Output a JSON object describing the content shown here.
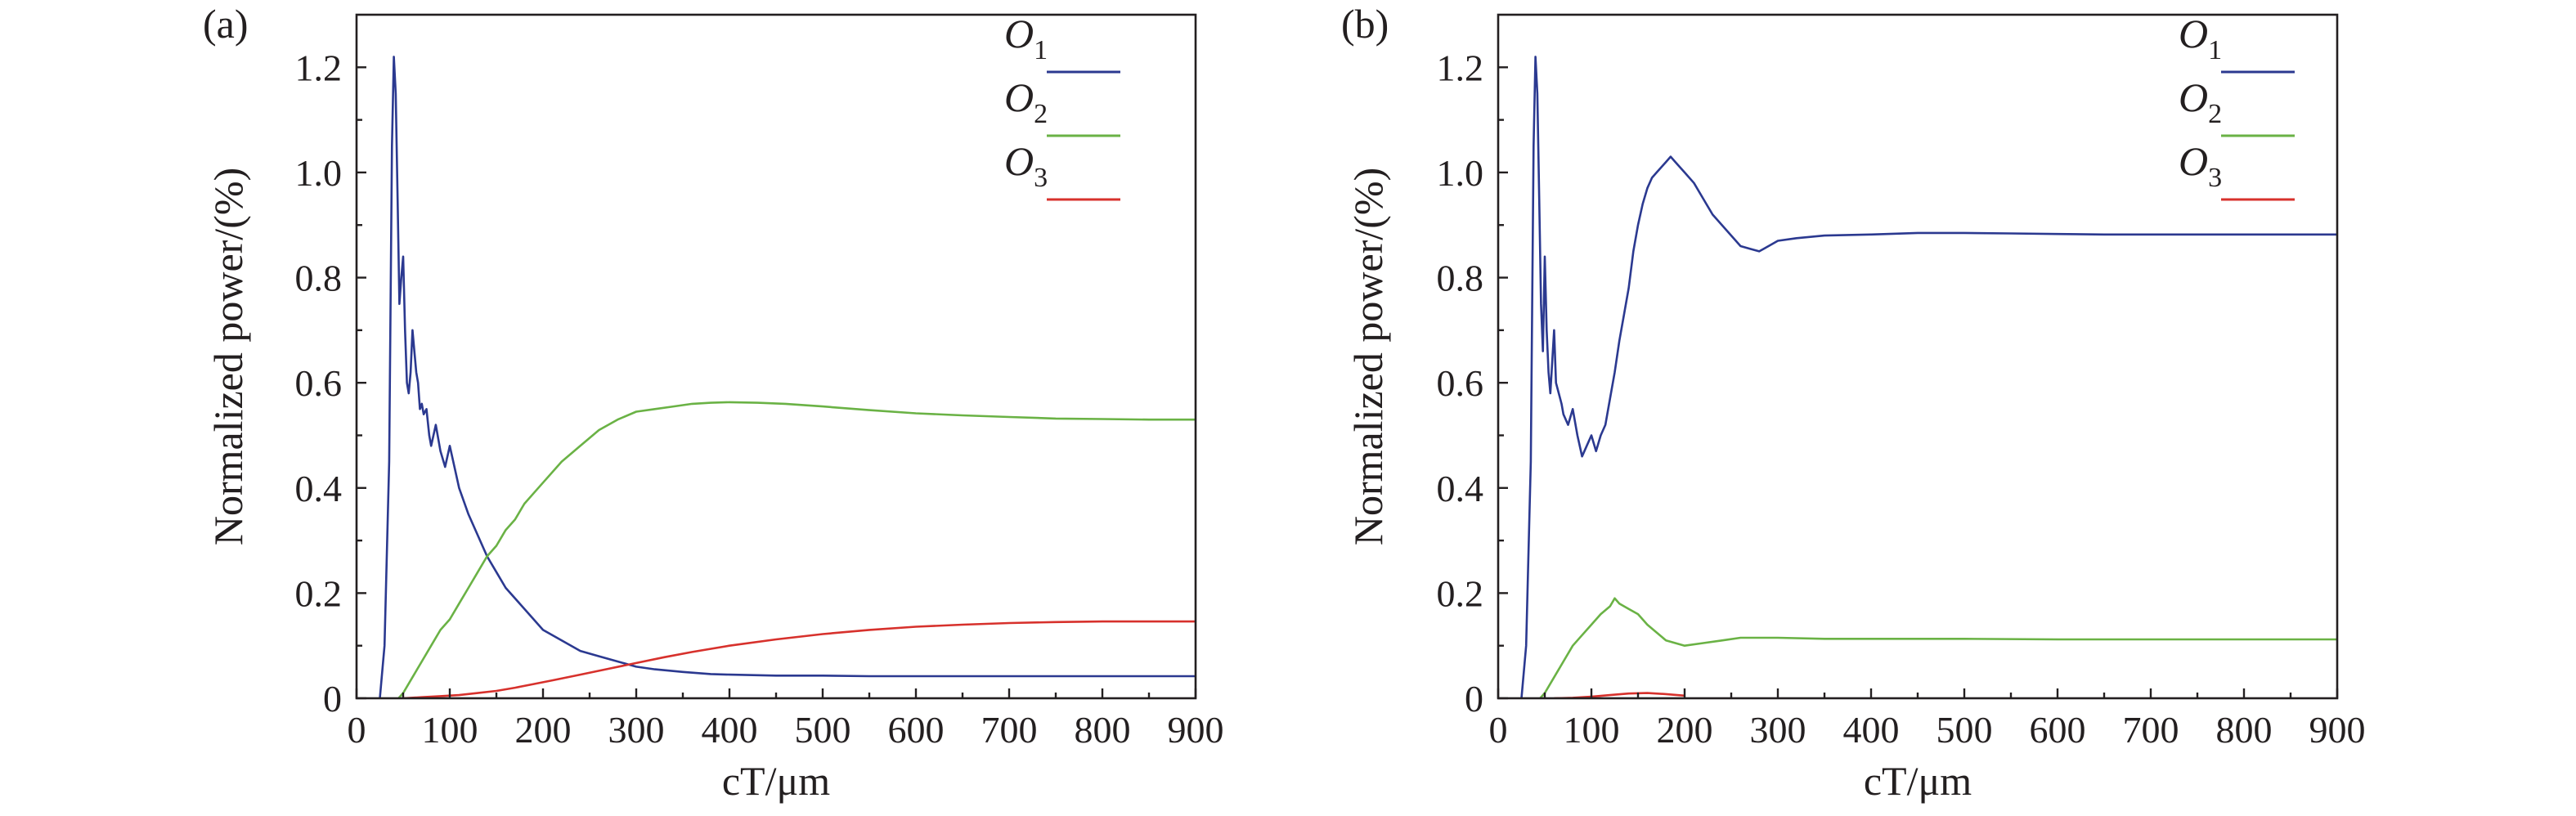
{
  "chart_data": [
    {
      "panel_label": "(a)",
      "type": "line",
      "xlabel": "cT/μm",
      "ylabel": "Normalized power/(%)",
      "xlim": [
        0,
        900
      ],
      "ylim": [
        0,
        1.3
      ],
      "xticks": [
        0,
        100,
        200,
        300,
        400,
        500,
        600,
        700,
        800,
        900
      ],
      "xtick_labels": [
        "0",
        "100",
        "200",
        "300",
        "400",
        "500",
        "600",
        "700",
        "800",
        "900"
      ],
      "yticks": [
        0,
        0.2,
        0.4,
        0.6,
        0.8,
        1.0,
        1.2
      ],
      "ytick_labels": [
        "0",
        "0.2",
        "0.4",
        "0.6",
        "0.8",
        "1.0",
        "1.2"
      ],
      "legend_position": "top-right",
      "series": [
        {
          "name": "O1",
          "base": "O",
          "sub": "1",
          "color": "#2b3990",
          "x": [
            25,
            30,
            35,
            38,
            40,
            42,
            44,
            46,
            48,
            50,
            52,
            54,
            56,
            58,
            60,
            62,
            64,
            66,
            68,
            70,
            72,
            75,
            78,
            80,
            85,
            90,
            95,
            100,
            105,
            110,
            120,
            130,
            140,
            150,
            160,
            175,
            190,
            200,
            220,
            240,
            260,
            280,
            300,
            320,
            350,
            380,
            400,
            450,
            500,
            550,
            600,
            650,
            700,
            750,
            800,
            850,
            900
          ],
          "y": [
            0,
            0.1,
            0.45,
            1.05,
            1.22,
            1.15,
            0.95,
            0.75,
            0.8,
            0.84,
            0.7,
            0.6,
            0.58,
            0.62,
            0.7,
            0.66,
            0.62,
            0.6,
            0.55,
            0.56,
            0.54,
            0.55,
            0.5,
            0.48,
            0.52,
            0.47,
            0.44,
            0.48,
            0.44,
            0.4,
            0.35,
            0.31,
            0.27,
            0.24,
            0.21,
            0.18,
            0.15,
            0.13,
            0.11,
            0.09,
            0.08,
            0.07,
            0.06,
            0.055,
            0.05,
            0.046,
            0.045,
            0.043,
            0.043,
            0.042,
            0.042,
            0.042,
            0.042,
            0.042,
            0.042,
            0.042,
            0.042
          ]
        },
        {
          "name": "O2",
          "base": "O",
          "sub": "2",
          "color": "#6ab245",
          "x": [
            45,
            50,
            60,
            70,
            80,
            90,
            100,
            110,
            120,
            130,
            140,
            150,
            160,
            170,
            180,
            190,
            200,
            220,
            240,
            260,
            280,
            300,
            320,
            340,
            360,
            380,
            400,
            430,
            460,
            500,
            550,
            600,
            650,
            700,
            750,
            800,
            850,
            900
          ],
          "y": [
            0,
            0.01,
            0.04,
            0.07,
            0.1,
            0.13,
            0.15,
            0.18,
            0.21,
            0.24,
            0.27,
            0.29,
            0.32,
            0.34,
            0.37,
            0.39,
            0.41,
            0.45,
            0.48,
            0.51,
            0.53,
            0.545,
            0.55,
            0.555,
            0.56,
            0.562,
            0.563,
            0.562,
            0.56,
            0.555,
            0.548,
            0.542,
            0.538,
            0.535,
            0.532,
            0.531,
            0.53,
            0.53
          ]
        },
        {
          "name": "O3",
          "base": "O",
          "sub": "3",
          "color": "#d7312c",
          "x": [
            50,
            70,
            90,
            110,
            130,
            150,
            170,
            190,
            210,
            240,
            270,
            300,
            330,
            360,
            400,
            450,
            500,
            550,
            600,
            650,
            700,
            750,
            800,
            850,
            900
          ],
          "y": [
            0,
            0.002,
            0.004,
            0.006,
            0.01,
            0.014,
            0.02,
            0.027,
            0.034,
            0.045,
            0.056,
            0.067,
            0.078,
            0.088,
            0.1,
            0.112,
            0.122,
            0.13,
            0.136,
            0.14,
            0.143,
            0.145,
            0.146,
            0.146,
            0.146
          ]
        }
      ]
    },
    {
      "panel_label": "(b)",
      "type": "line",
      "xlabel": "cT/μm",
      "ylabel": "Normalized power/(%)",
      "xlim": [
        0,
        900
      ],
      "ylim": [
        0,
        1.3
      ],
      "xticks": [
        0,
        100,
        200,
        300,
        400,
        500,
        600,
        700,
        800,
        900
      ],
      "xtick_labels": [
        "0",
        "100",
        "200",
        "300",
        "400",
        "500",
        "600",
        "700",
        "800",
        "900"
      ],
      "yticks": [
        0,
        0.2,
        0.4,
        0.6,
        0.8,
        1.0,
        1.2
      ],
      "ytick_labels": [
        "0",
        "0.2",
        "0.4",
        "0.6",
        "0.8",
        "1.0",
        "1.2"
      ],
      "legend_position": "top-right",
      "series": [
        {
          "name": "O1",
          "base": "O",
          "sub": "1",
          "color": "#2b3990",
          "x": [
            25,
            30,
            35,
            38,
            40,
            42,
            44,
            46,
            48,
            50,
            52,
            54,
            56,
            58,
            60,
            62,
            65,
            68,
            70,
            75,
            80,
            85,
            90,
            95,
            100,
            105,
            110,
            115,
            120,
            125,
            130,
            135,
            140,
            145,
            150,
            155,
            160,
            165,
            170,
            175,
            180,
            185,
            190,
            195,
            200,
            210,
            220,
            230,
            240,
            250,
            260,
            270,
            280,
            290,
            300,
            320,
            350,
            400,
            450,
            500,
            550,
            600,
            650,
            700,
            750,
            800,
            850,
            900
          ],
          "y": [
            0,
            0.1,
            0.45,
            1.05,
            1.22,
            1.15,
            0.95,
            0.75,
            0.66,
            0.84,
            0.7,
            0.62,
            0.58,
            0.64,
            0.7,
            0.6,
            0.58,
            0.56,
            0.54,
            0.52,
            0.55,
            0.5,
            0.46,
            0.48,
            0.5,
            0.47,
            0.5,
            0.52,
            0.57,
            0.62,
            0.68,
            0.73,
            0.78,
            0.85,
            0.9,
            0.94,
            0.97,
            0.99,
            1.0,
            1.01,
            1.02,
            1.03,
            1.02,
            1.01,
            1.0,
            0.98,
            0.95,
            0.92,
            0.9,
            0.88,
            0.86,
            0.855,
            0.85,
            0.86,
            0.87,
            0.875,
            0.88,
            0.882,
            0.885,
            0.885,
            0.884,
            0.883,
            0.882,
            0.882,
            0.882,
            0.882,
            0.882,
            0.882
          ]
        },
        {
          "name": "O2",
          "base": "O",
          "sub": "2",
          "color": "#6ab245",
          "x": [
            45,
            50,
            60,
            70,
            80,
            90,
            100,
            110,
            120,
            125,
            130,
            140,
            150,
            160,
            170,
            180,
            190,
            200,
            220,
            240,
            260,
            280,
            300,
            350,
            400,
            500,
            600,
            700,
            800,
            900
          ],
          "y": [
            0,
            0.01,
            0.04,
            0.07,
            0.1,
            0.12,
            0.14,
            0.16,
            0.175,
            0.19,
            0.18,
            0.17,
            0.16,
            0.14,
            0.125,
            0.11,
            0.105,
            0.1,
            0.105,
            0.11,
            0.115,
            0.115,
            0.115,
            0.113,
            0.113,
            0.113,
            0.112,
            0.112,
            0.112,
            0.112
          ]
        },
        {
          "name": "O3",
          "base": "O",
          "sub": "3",
          "color": "#d7312c",
          "x": [
            60,
            80,
            100,
            120,
            140,
            160,
            180,
            200
          ],
          "y": [
            0,
            0.001,
            0.003,
            0.006,
            0.009,
            0.01,
            0.008,
            0.005
          ]
        }
      ]
    }
  ]
}
